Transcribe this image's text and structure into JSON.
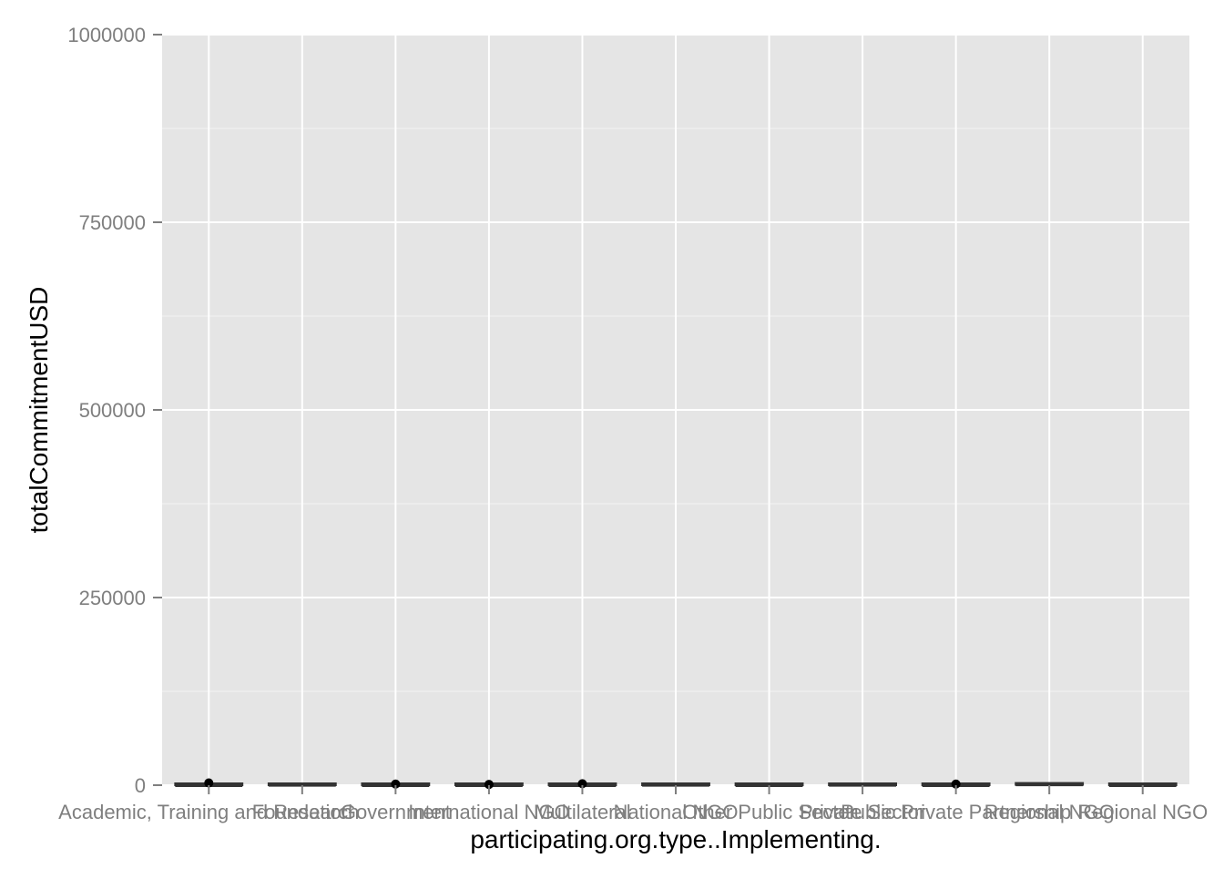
{
  "chart_data": {
    "type": "box",
    "title": "",
    "xlabel": "participating.org.type..Implementing.",
    "ylabel": "totalCommitmentUSD",
    "ylim": [
      0,
      1000000
    ],
    "y_ticks": [
      0,
      250000,
      500000,
      750000,
      1000000
    ],
    "y_tick_labels": [
      "0",
      "250000",
      "500000",
      "750000",
      "1000000"
    ],
    "grid": true,
    "legend": "none",
    "colors": {
      "panel_background": "#e5e5e5",
      "grid_major": "#ffffff",
      "grid_minor": "#f2f2f2",
      "box": "#333333",
      "outlier": "#000000",
      "tick_label": "#7f7f7f",
      "axis_title": "#000000"
    },
    "categories": [
      "Academic, Training and Research",
      "Foundation",
      "Government",
      "International NGO",
      "Multilateral",
      "National NGO",
      "Other Public Sector",
      "Private Sector",
      "Public Private Partnership",
      "Regional NGO",
      "Regional NGO"
    ],
    "boxes": [
      {
        "median": 0,
        "q1": 0,
        "q3": 1000,
        "outliers": [
          3000
        ]
      },
      {
        "median": 500,
        "q1": 0,
        "q3": 1500,
        "outliers": []
      },
      {
        "median": 0,
        "q1": 0,
        "q3": 800,
        "outliers": [
          1500
        ]
      },
      {
        "median": 0,
        "q1": 0,
        "q3": 500,
        "outliers": [
          1000
        ]
      },
      {
        "median": 0,
        "q1": 0,
        "q3": 800,
        "outliers": [
          2000
        ]
      },
      {
        "median": 500,
        "q1": 0,
        "q3": 1000,
        "outliers": []
      },
      {
        "median": 0,
        "q1": 0,
        "q3": 500,
        "outliers": []
      },
      {
        "median": 500,
        "q1": 0,
        "q3": 1000,
        "outliers": []
      },
      {
        "median": 0,
        "q1": 0,
        "q3": 500,
        "outliers": [
          1500
        ]
      },
      {
        "median": 1000,
        "q1": 500,
        "q3": 2000,
        "outliers": []
      },
      {
        "median": 0,
        "q1": 0,
        "q3": 500,
        "outliers": []
      }
    ]
  }
}
